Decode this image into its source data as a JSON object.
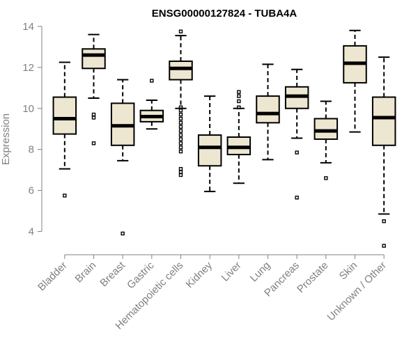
{
  "chart_data": {
    "type": "boxplot",
    "title": "ENSG00000127824 - TUBA4A",
    "ylabel": "Expression",
    "xlabel": "",
    "ylim": [
      3.0,
      14.2
    ],
    "yticks": [
      4,
      6,
      8,
      10,
      12,
      14
    ],
    "grid": false,
    "box_color": "#ede6d0",
    "categories": [
      "Bladder",
      "Brain",
      "Breast",
      "Gastric",
      "Hematopoietic cells",
      "Kidney",
      "Liver",
      "Lung",
      "Pancreas",
      "Prostate",
      "Skin",
      "Unknown / Other"
    ],
    "boxes": [
      {
        "category": "Bladder",
        "whisker_low": 7.05,
        "q1": 8.75,
        "median": 9.5,
        "q3": 10.55,
        "whisker_high": 12.25,
        "outliers": [
          5.75
        ]
      },
      {
        "category": "Brain",
        "whisker_low": 10.5,
        "q1": 11.95,
        "median": 12.6,
        "q3": 12.9,
        "whisker_high": 13.6,
        "outliers": [
          9.55,
          9.7,
          8.3
        ]
      },
      {
        "category": "Breast",
        "whisker_low": 7.45,
        "q1": 8.2,
        "median": 9.15,
        "q3": 10.25,
        "whisker_high": 11.4,
        "outliers": [
          3.9
        ]
      },
      {
        "category": "Gastric",
        "whisker_low": 9.0,
        "q1": 9.35,
        "median": 9.6,
        "q3": 9.9,
        "whisker_high": 10.4,
        "outliers": [
          11.35
        ]
      },
      {
        "category": "Hematopoietic cells",
        "whisker_low": 10.0,
        "q1": 11.4,
        "median": 11.95,
        "q3": 12.3,
        "whisker_high": 13.55,
        "outliers": [
          13.75,
          10.05,
          9.9,
          9.7,
          9.5,
          9.3,
          9.1,
          8.9,
          8.7,
          8.5,
          8.3,
          8.1,
          7.9,
          7.05,
          6.9,
          6.75
        ]
      },
      {
        "category": "Kidney",
        "whisker_low": 5.95,
        "q1": 7.2,
        "median": 8.1,
        "q3": 8.7,
        "whisker_high": 10.6,
        "outliers": []
      },
      {
        "category": "Liver",
        "whisker_low": 6.35,
        "q1": 7.75,
        "median": 8.1,
        "q3": 8.6,
        "whisker_high": 10.0,
        "outliers": [
          10.05,
          10.35,
          10.6,
          10.8
        ]
      },
      {
        "category": "Lung",
        "whisker_low": 7.5,
        "q1": 9.3,
        "median": 9.75,
        "q3": 10.6,
        "whisker_high": 12.15,
        "outliers": []
      },
      {
        "category": "Pancreas",
        "whisker_low": 8.55,
        "q1": 10.0,
        "median": 10.6,
        "q3": 11.05,
        "whisker_high": 11.9,
        "outliers": [
          7.85,
          5.65
        ]
      },
      {
        "category": "Prostate",
        "whisker_low": 7.35,
        "q1": 8.5,
        "median": 8.9,
        "q3": 9.5,
        "whisker_high": 10.35,
        "outliers": [
          6.6
        ]
      },
      {
        "category": "Skin",
        "whisker_low": 8.85,
        "q1": 11.25,
        "median": 12.2,
        "q3": 13.05,
        "whisker_high": 13.8,
        "outliers": []
      },
      {
        "category": "Unknown / Other",
        "whisker_low": 4.85,
        "q1": 8.2,
        "median": 9.55,
        "q3": 10.55,
        "whisker_high": 12.5,
        "outliers": [
          4.5,
          3.3
        ]
      }
    ]
  }
}
